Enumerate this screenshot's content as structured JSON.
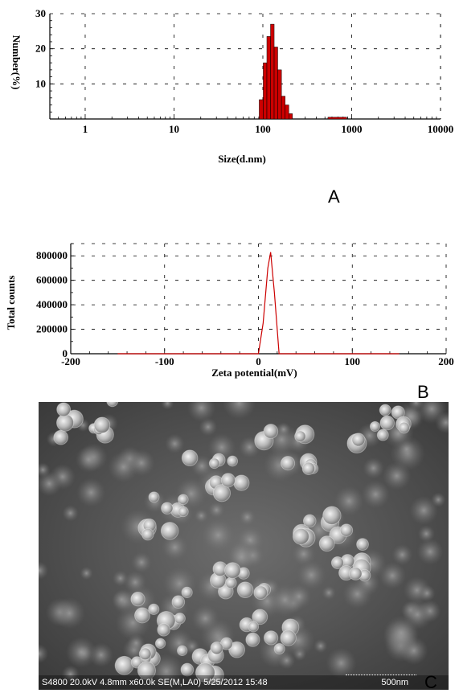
{
  "chart_data": [
    {
      "type": "bar",
      "xlabel": "Size(d.nm)",
      "ylabel": "Number(%)",
      "xscale": "log",
      "xlim": [
        0.4,
        10000
      ],
      "ylim": [
        0,
        30
      ],
      "xticks": [
        "1",
        "10",
        "100",
        "1000",
        "10000"
      ],
      "yticks": [
        "10",
        "20",
        "30"
      ],
      "grid": true,
      "bar_color": "#cc0000",
      "bins": [
        {
          "from": 91,
          "to": 101,
          "value": 5.5
        },
        {
          "from": 101,
          "to": 111,
          "value": 16
        },
        {
          "from": 111,
          "to": 122,
          "value": 23.5
        },
        {
          "from": 122,
          "to": 134,
          "value": 27
        },
        {
          "from": 134,
          "to": 147,
          "value": 20.5
        },
        {
          "from": 147,
          "to": 162,
          "value": 14
        },
        {
          "from": 162,
          "to": 178,
          "value": 6.5
        },
        {
          "from": 178,
          "to": 196,
          "value": 4
        },
        {
          "from": 196,
          "to": 215,
          "value": 1.5
        },
        {
          "from": 540,
          "to": 880,
          "value": 0.5
        }
      ]
    },
    {
      "type": "line",
      "xlabel": "Zeta potential(mV)",
      "ylabel": "Total counts",
      "xlim": [
        -200,
        200
      ],
      "ylim": [
        0,
        900000
      ],
      "xticks": [
        "-200",
        "-100",
        "0",
        "100",
        "200"
      ],
      "yticks": [
        "0",
        "200000",
        "400000",
        "600000",
        "800000"
      ],
      "grid": true,
      "line_color": "#cc0000",
      "series": [
        {
          "x": [
            -150,
            -10,
            0,
            5,
            10,
            13,
            17,
            22,
            100,
            150
          ],
          "y": [
            0,
            0,
            0,
            250000,
            700000,
            830000,
            500000,
            0,
            0,
            0
          ]
        }
      ]
    }
  ],
  "panel_labels": {
    "a": "A",
    "b": "B",
    "c": "C"
  },
  "sem": {
    "caption": "S4800 20.0kV 4.8mm x60.0k SE(M,LA0) 5/25/2012 15:48",
    "scale_label": "500nm"
  }
}
